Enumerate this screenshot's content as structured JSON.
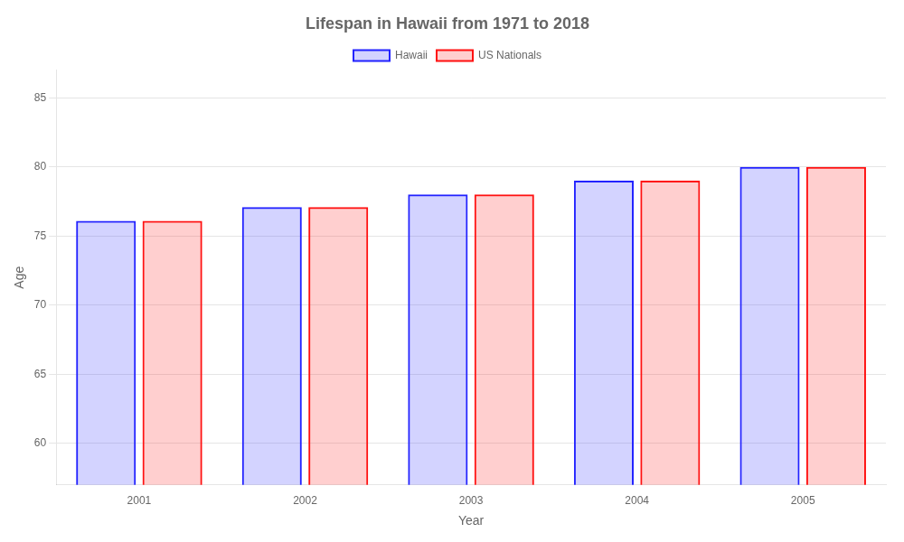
{
  "chart_data": {
    "type": "bar",
    "title": "Lifespan in Hawaii from 1971 to 2018",
    "xlabel": "Year",
    "ylabel": "Age",
    "categories": [
      "2001",
      "2002",
      "2003",
      "2004",
      "2005"
    ],
    "series": [
      {
        "name": "Hawaii",
        "color": "#2222ff",
        "values": [
          76.1,
          77.1,
          78.0,
          79.0,
          80.0
        ]
      },
      {
        "name": "US Nationals",
        "color": "#ff1111",
        "values": [
          76.1,
          77.1,
          78.0,
          79.0,
          80.0
        ]
      }
    ],
    "ylim": [
      57,
      87
    ],
    "yticks": [
      60,
      65,
      70,
      75,
      80,
      85
    ],
    "grid": true,
    "legend": "top"
  }
}
